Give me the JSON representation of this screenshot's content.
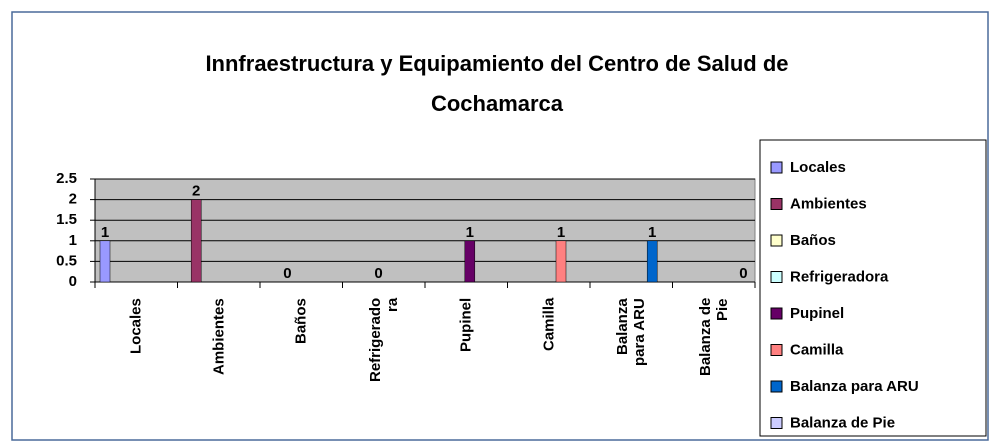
{
  "chart_data": {
    "type": "bar",
    "title": "Innfraestructura y Equipamiento del Centro de Salud de Cochamarca",
    "categories": [
      "Locales",
      "Ambientes",
      "Baños",
      "Refrigeradora",
      "Pupinel",
      "Camilla",
      "Balanza para ARU",
      "Balanza de Pie"
    ],
    "values": [
      1,
      2,
      0,
      0,
      1,
      1,
      1,
      0
    ],
    "colors": [
      "#9999ff",
      "#993366",
      "#ffffcc",
      "#ccffff",
      "#660066",
      "#ff8080",
      "#0066cc",
      "#ccccff"
    ],
    "ylim": [
      0,
      2.5
    ],
    "yticks": [
      0,
      0.5,
      1,
      1.5,
      2,
      2.5
    ],
    "grid": true,
    "legend": "right"
  }
}
